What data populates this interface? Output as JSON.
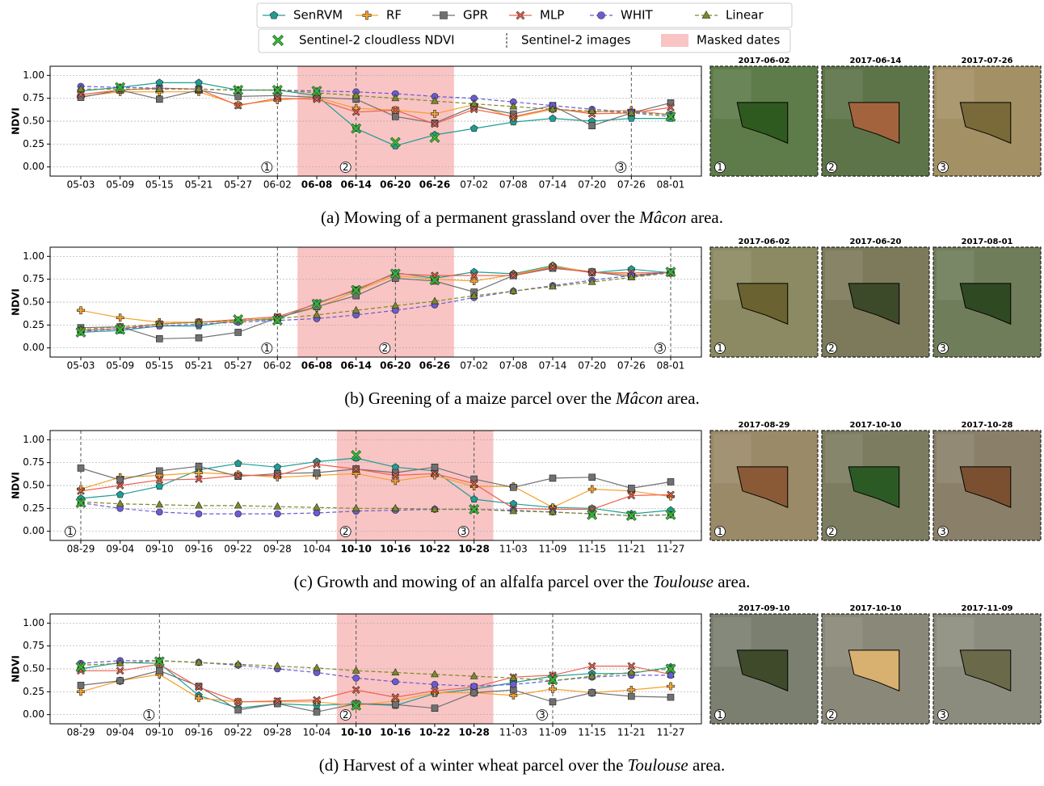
{
  "legend": [
    {
      "name": "SenRVM",
      "color": "#1d9e94",
      "marker": "pentagon",
      "dash": false
    },
    {
      "name": "RF",
      "color": "#f5a12b",
      "marker": "plus",
      "dash": false
    },
    {
      "name": "GPR",
      "color": "#707070",
      "marker": "square",
      "dash": false
    },
    {
      "name": "MLP",
      "color": "#f0604d",
      "marker": "cross",
      "dash": false
    },
    {
      "name": "WHIT",
      "color": "#6a5bd6",
      "marker": "circle",
      "dash": true
    },
    {
      "name": "Linear",
      "color": "#7d8a26",
      "marker": "triangle",
      "dash": true
    },
    {
      "name": "Sentinel-2 cloudless NDVI",
      "color": "#3bb33b",
      "marker": "cross"
    },
    {
      "name": "Sentinel-2 images",
      "color": "#555555"
    },
    {
      "name": "Masked dates",
      "color": "#f9c4c4"
    }
  ],
  "chart_data": [
    {
      "type": "line",
      "ylabel": "NDVI",
      "categories": [
        "05-03",
        "05-09",
        "05-15",
        "05-21",
        "05-27",
        "06-02",
        "06-08",
        "06-14",
        "06-20",
        "06-26",
        "07-02",
        "07-08",
        "07-14",
        "07-20",
        "07-26",
        "08-01"
      ],
      "masked": [
        6,
        9
      ],
      "masked_label_color": "#e8141b",
      "ylim": [
        -0.1,
        1.1
      ],
      "yticks": [
        {
          "value": 0,
          "label": "0.00"
        },
        {
          "value": 0.25,
          "label": "0.25"
        },
        {
          "value": 0.5,
          "label": "0.50"
        },
        {
          "value": 0.75,
          "label": "0.75"
        },
        {
          "value": 1,
          "label": "1.00"
        }
      ],
      "grid": true,
      "series": [
        {
          "values": [
            0.83,
            0.87,
            0.92,
            0.92,
            0.84,
            0.84,
            0.78,
            0.42,
            0.23,
            0.35,
            0.42,
            0.49,
            0.53,
            0.5,
            0.53,
            0.53
          ]
        },
        {
          "values": [
            0.77,
            0.82,
            0.82,
            0.82,
            0.68,
            0.73,
            0.76,
            0.64,
            0.62,
            0.58,
            0.68,
            0.54,
            0.63,
            0.6,
            0.62,
            0.57
          ]
        },
        {
          "values": [
            0.76,
            0.84,
            0.74,
            0.84,
            0.77,
            0.78,
            0.76,
            0.74,
            0.55,
            0.48,
            0.66,
            0.58,
            0.67,
            0.45,
            0.59,
            0.7
          ]
        },
        {
          "values": [
            0.79,
            0.84,
            0.86,
            0.85,
            0.67,
            0.75,
            0.74,
            0.6,
            0.62,
            0.47,
            0.63,
            0.55,
            0.64,
            0.58,
            0.59,
            0.65
          ]
        },
        {
          "values": [
            0.88,
            0.87,
            0.86,
            0.85,
            0.84,
            0.84,
            0.83,
            0.82,
            0.8,
            0.77,
            0.75,
            0.71,
            0.67,
            0.63,
            0.6,
            0.57
          ]
        },
        {
          "values": [
            0.85,
            0.85,
            0.85,
            0.85,
            0.84,
            0.84,
            0.81,
            0.78,
            0.75,
            0.72,
            0.69,
            0.66,
            0.63,
            0.61,
            0.59,
            0.55
          ]
        }
      ],
      "cloudless": [
        null,
        0.87,
        null,
        null,
        0.84,
        0.84,
        0.83,
        0.42,
        0.27,
        0.32,
        null,
        null,
        null,
        null,
        null,
        0.55
      ],
      "images": [
        {
          "date": "2017-06-02",
          "label": 1,
          "bg": "#5e7c4a",
          "parcel": "#2f5a1f"
        },
        {
          "date": "2017-06-14",
          "label": 2,
          "bg": "#5d7448",
          "parcel": "#a3643d"
        },
        {
          "date": "2017-07-26",
          "label": 3,
          "bg": "#a39165",
          "parcel": "#7a6a3a"
        }
      ],
      "caption": {
        "before": "(a) Mowing of a permanent grassland over the ",
        "place": "Mâcon",
        "after": " area."
      }
    },
    {
      "type": "line",
      "ylabel": "NDVI",
      "categories": [
        "05-03",
        "05-09",
        "05-15",
        "05-21",
        "05-27",
        "06-02",
        "06-08",
        "06-14",
        "06-20",
        "06-26",
        "07-02",
        "07-08",
        "07-14",
        "07-20",
        "07-26",
        "08-01"
      ],
      "masked": [
        6,
        9
      ],
      "masked_label_color": "#e8141b",
      "ylim": [
        -0.1,
        1.1
      ],
      "yticks": [
        {
          "value": 0,
          "label": "0.00"
        },
        {
          "value": 0.25,
          "label": "0.25"
        },
        {
          "value": 0.5,
          "label": "0.50"
        },
        {
          "value": 0.75,
          "label": "0.75"
        },
        {
          "value": 1,
          "label": "1.00"
        }
      ],
      "grid": true,
      "series": [
        {
          "values": [
            0.17,
            0.19,
            0.24,
            0.24,
            0.3,
            0.31,
            0.49,
            0.63,
            0.82,
            0.76,
            0.83,
            0.81,
            0.9,
            0.82,
            0.86,
            0.82
          ]
        },
        {
          "values": [
            0.41,
            0.33,
            0.28,
            0.28,
            0.29,
            0.33,
            0.44,
            0.62,
            0.79,
            0.75,
            0.73,
            0.8,
            0.89,
            0.83,
            0.8,
            0.82
          ]
        },
        {
          "values": [
            0.22,
            0.23,
            0.1,
            0.11,
            0.17,
            0.33,
            0.45,
            0.57,
            0.76,
            0.73,
            0.61,
            0.79,
            0.87,
            0.83,
            0.78,
            0.83
          ]
        },
        {
          "values": [
            0.19,
            0.21,
            0.26,
            0.28,
            0.31,
            0.34,
            0.48,
            0.64,
            0.81,
            0.79,
            0.79,
            0.79,
            0.88,
            0.82,
            0.82,
            0.82
          ]
        },
        {
          "values": [
            0.18,
            0.21,
            0.24,
            0.26,
            0.28,
            0.3,
            0.32,
            0.36,
            0.41,
            0.47,
            0.55,
            0.62,
            0.68,
            0.74,
            0.79,
            0.83
          ]
        },
        {
          "values": [
            0.2,
            0.23,
            0.26,
            0.28,
            0.3,
            0.32,
            0.36,
            0.41,
            0.46,
            0.51,
            0.57,
            0.62,
            0.67,
            0.72,
            0.77,
            0.82
          ]
        }
      ],
      "cloudless": [
        0.17,
        0.2,
        null,
        null,
        0.31,
        0.3,
        0.48,
        0.63,
        0.81,
        0.74,
        null,
        null,
        null,
        null,
        null,
        0.83
      ],
      "images": [
        {
          "date": "2017-06-02",
          "label": 1,
          "bg": "#8c8a62",
          "parcel": "#6a6230"
        },
        {
          "date": "2017-06-20",
          "label": 2,
          "bg": "#7d7a5c",
          "parcel": "#3d4a2a"
        },
        {
          "date": "2017-08-01",
          "label": 3,
          "bg": "#6f7d5a",
          "parcel": "#2f4a22"
        }
      ],
      "caption": {
        "before": "(b) Greening of a maize parcel over the ",
        "place": "Mâcon",
        "after": " area."
      }
    },
    {
      "type": "line",
      "ylabel": "NDVI",
      "categories": [
        "08-29",
        "09-04",
        "09-10",
        "09-16",
        "09-22",
        "09-28",
        "10-04",
        "10-10",
        "10-16",
        "10-22",
        "10-28",
        "11-03",
        "11-09",
        "11-15",
        "11-21",
        "11-27"
      ],
      "masked": [
        7,
        10
      ],
      "masked_label_color": "#e8141b",
      "ylim": [
        -0.1,
        1.1
      ],
      "yticks": [
        {
          "value": 0,
          "label": "0.00"
        },
        {
          "value": 0.25,
          "label": "0.25"
        },
        {
          "value": 0.5,
          "label": "0.50"
        },
        {
          "value": 0.75,
          "label": "0.75"
        },
        {
          "value": 1,
          "label": "1.00"
        }
      ],
      "grid": true,
      "series": [
        {
          "values": [
            0.36,
            0.4,
            0.49,
            0.67,
            0.74,
            0.7,
            0.76,
            0.8,
            0.7,
            0.66,
            0.35,
            0.3,
            0.26,
            0.25,
            0.19,
            0.23
          ]
        },
        {
          "values": [
            0.46,
            0.59,
            0.61,
            0.64,
            0.62,
            0.59,
            0.61,
            0.63,
            0.55,
            0.61,
            0.49,
            0.49,
            0.26,
            0.46,
            0.44,
            0.38
          ]
        },
        {
          "values": [
            0.69,
            0.56,
            0.66,
            0.71,
            0.6,
            0.63,
            0.64,
            0.68,
            0.64,
            0.7,
            0.57,
            0.48,
            0.58,
            0.59,
            0.47,
            0.54
          ]
        },
        {
          "values": [
            0.44,
            0.5,
            0.56,
            0.57,
            0.61,
            0.61,
            0.73,
            0.68,
            0.61,
            0.63,
            0.52,
            0.25,
            0.24,
            0.24,
            0.39,
            0.4
          ]
        },
        {
          "values": [
            0.31,
            0.25,
            0.21,
            0.19,
            0.19,
            0.19,
            0.2,
            0.22,
            0.23,
            0.24,
            0.24,
            0.23,
            0.21,
            0.19,
            0.17,
            0.18
          ]
        },
        {
          "values": [
            0.32,
            0.3,
            0.29,
            0.28,
            0.28,
            0.27,
            0.26,
            0.25,
            0.25,
            0.24,
            0.24,
            0.22,
            0.21,
            0.19,
            0.17,
            0.18
          ]
        }
      ],
      "cloudless": [
        0.31,
        null,
        null,
        null,
        null,
        null,
        null,
        0.83,
        null,
        null,
        0.24,
        null,
        null,
        0.18,
        0.17,
        0.18
      ],
      "images": [
        {
          "date": "2017-08-29",
          "label": 1,
          "bg": "#9a8a68",
          "parcel": "#8a5a36"
        },
        {
          "date": "2017-10-10",
          "label": 2,
          "bg": "#7c7c60",
          "parcel": "#2c5a24"
        },
        {
          "date": "2017-10-28",
          "label": 3,
          "bg": "#8a806a",
          "parcel": "#7a5030"
        }
      ],
      "caption": {
        "before": "(c) Growth and mowing of an alfalfa parcel over the ",
        "place": "Toulouse",
        "after": " area."
      }
    },
    {
      "type": "line",
      "ylabel": "NDVI",
      "categories": [
        "08-29",
        "09-04",
        "09-10",
        "09-16",
        "09-22",
        "09-28",
        "10-04",
        "10-10",
        "10-16",
        "10-22",
        "10-28",
        "11-03",
        "11-09",
        "11-15",
        "11-21",
        "11-27"
      ],
      "masked": [
        7,
        10
      ],
      "masked_label_color": "#e8141b",
      "ylim": [
        -0.1,
        1.1
      ],
      "yticks": [
        {
          "value": 0,
          "label": "0.00"
        },
        {
          "value": 0.25,
          "label": "0.25"
        },
        {
          "value": 0.5,
          "label": "0.50"
        },
        {
          "value": 0.75,
          "label": "0.75"
        },
        {
          "value": 1,
          "label": "1.00"
        }
      ],
      "grid": true,
      "series": [
        {
          "values": [
            0.5,
            0.57,
            0.56,
            0.21,
            0.07,
            0.12,
            0.1,
            0.12,
            0.1,
            0.23,
            0.28,
            0.35,
            0.42,
            0.45,
            0.45,
            0.52
          ]
        },
        {
          "values": [
            0.25,
            0.37,
            0.44,
            0.18,
            0.14,
            0.14,
            0.14,
            0.1,
            0.15,
            0.24,
            0.24,
            0.21,
            0.28,
            0.24,
            0.27,
            0.31
          ]
        },
        {
          "values": [
            0.32,
            0.37,
            0.48,
            0.31,
            0.05,
            0.12,
            0.03,
            0.12,
            0.11,
            0.07,
            0.24,
            0.27,
            0.14,
            0.24,
            0.2,
            0.19
          ]
        },
        {
          "values": [
            0.48,
            0.48,
            0.55,
            0.3,
            0.14,
            0.15,
            0.16,
            0.27,
            0.19,
            0.26,
            0.3,
            0.41,
            0.43,
            0.53,
            0.53,
            0.44
          ]
        },
        {
          "values": [
            0.56,
            0.59,
            0.59,
            0.57,
            0.54,
            0.5,
            0.46,
            0.4,
            0.36,
            0.33,
            0.31,
            0.33,
            0.37,
            0.41,
            0.43,
            0.43
          ]
        },
        {
          "values": [
            0.54,
            0.56,
            0.59,
            0.57,
            0.55,
            0.53,
            0.51,
            0.48,
            0.46,
            0.44,
            0.42,
            0.4,
            0.37,
            0.42,
            0.46,
            0.5
          ]
        }
      ],
      "cloudless": [
        0.52,
        null,
        0.58,
        null,
        null,
        null,
        null,
        0.1,
        null,
        null,
        null,
        null,
        0.38,
        null,
        null,
        0.5
      ],
      "images": [
        {
          "date": "2017-09-10",
          "label": 1,
          "bg": "#7b7f70",
          "parcel": "#3f4a2a"
        },
        {
          "date": "2017-10-10",
          "label": 2,
          "bg": "#8a8878",
          "parcel": "#d8b070"
        },
        {
          "date": "2017-11-09",
          "label": 3,
          "bg": "#8c8c7e",
          "parcel": "#6a6a4a"
        }
      ],
      "caption": {
        "before": "(d) Harvest of a winter wheat parcel over the ",
        "place": "Toulouse",
        "after": " area."
      }
    }
  ]
}
